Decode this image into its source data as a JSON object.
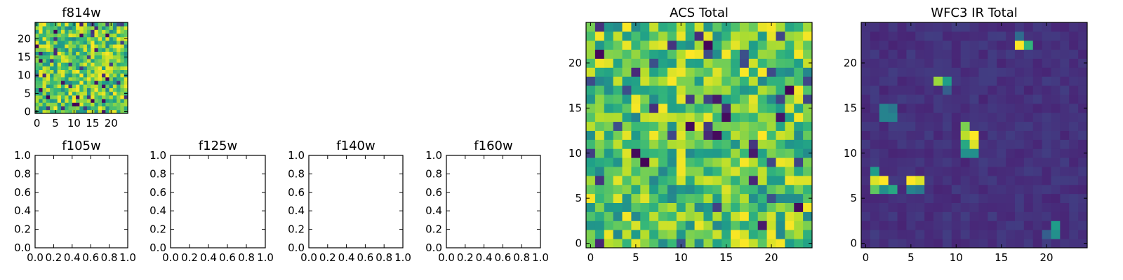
{
  "chart_data": [
    {
      "type": "heatmap",
      "title": "f814w",
      "x_ticks": [
        "0",
        "5",
        "10",
        "15",
        "20"
      ],
      "y_ticks": [
        "0",
        "5",
        "10",
        "15",
        "20"
      ],
      "xlim": [
        -0.5,
        24.5
      ],
      "ylim": [
        -0.5,
        24.5
      ],
      "grid_size": [
        25,
        25
      ],
      "colormap": "viridis",
      "seed": 11
    },
    {
      "type": "heatmap",
      "title": "f105w",
      "x_ticks": [
        "0.0",
        "0.2",
        "0.4",
        "0.6",
        "0.8",
        "1.0"
      ],
      "y_ticks": [
        "0.0",
        "0.2",
        "0.4",
        "0.6",
        "0.8",
        "1.0"
      ],
      "xlim": [
        0,
        1
      ],
      "ylim": [
        0,
        1
      ],
      "empty": true
    },
    {
      "type": "heatmap",
      "title": "f125w",
      "x_ticks": [
        "0.0",
        "0.2",
        "0.4",
        "0.6",
        "0.8",
        "1.0"
      ],
      "y_ticks": [
        "0.0",
        "0.2",
        "0.4",
        "0.6",
        "0.8",
        "1.0"
      ],
      "xlim": [
        0,
        1
      ],
      "ylim": [
        0,
        1
      ],
      "empty": true
    },
    {
      "type": "heatmap",
      "title": "f140w",
      "x_ticks": [
        "0.0",
        "0.2",
        "0.4",
        "0.6",
        "0.8",
        "1.0"
      ],
      "y_ticks": [
        "0.0",
        "0.2",
        "0.4",
        "0.6",
        "0.8",
        "1.0"
      ],
      "xlim": [
        0,
        1
      ],
      "ylim": [
        0,
        1
      ],
      "empty": true
    },
    {
      "type": "heatmap",
      "title": "f160w",
      "x_ticks": [
        "0.0",
        "0.2",
        "0.4",
        "0.6",
        "0.8",
        "1.0"
      ],
      "y_ticks": [
        "0.0",
        "0.2",
        "0.4",
        "0.6",
        "0.8",
        "1.0"
      ],
      "xlim": [
        0,
        1
      ],
      "ylim": [
        0,
        1
      ],
      "empty": true
    },
    {
      "type": "heatmap",
      "title": "ACS Total",
      "x_ticks": [
        "0",
        "5",
        "10",
        "15",
        "20"
      ],
      "y_ticks": [
        "0",
        "5",
        "10",
        "15",
        "20"
      ],
      "xlim": [
        -0.5,
        24.5
      ],
      "ylim": [
        -0.5,
        24.5
      ],
      "grid_size": [
        25,
        25
      ],
      "colormap": "viridis",
      "seed": 47
    },
    {
      "type": "heatmap",
      "title": "WFC3 IR Total",
      "x_ticks": [
        "0",
        "5",
        "10",
        "15",
        "20"
      ],
      "y_ticks": [
        "0",
        "5",
        "10",
        "15",
        "20"
      ],
      "xlim": [
        -0.5,
        24.5
      ],
      "ylim": [
        -0.5,
        24.5
      ],
      "grid_size": [
        25,
        25
      ],
      "colormap": "viridis",
      "background_level": 0.1,
      "hotspots": [
        {
          "x": 1,
          "y": 8,
          "v": 0.55
        },
        {
          "x": 1,
          "y": 7,
          "v": 0.95
        },
        {
          "x": 2,
          "y": 7,
          "v": 1.0
        },
        {
          "x": 1,
          "y": 6,
          "v": 0.75
        },
        {
          "x": 2,
          "y": 6,
          "v": 0.5
        },
        {
          "x": 3,
          "y": 6,
          "v": 0.6
        },
        {
          "x": 5,
          "y": 7,
          "v": 1.0
        },
        {
          "x": 6,
          "y": 7,
          "v": 0.95
        },
        {
          "x": 5,
          "y": 6,
          "v": 0.45
        },
        {
          "x": 6,
          "y": 6,
          "v": 0.4
        },
        {
          "x": 2,
          "y": 14,
          "v": 0.45
        },
        {
          "x": 3,
          "y": 14,
          "v": 0.45
        },
        {
          "x": 2,
          "y": 15,
          "v": 0.45
        },
        {
          "x": 3,
          "y": 15,
          "v": 0.4
        },
        {
          "x": 8,
          "y": 18,
          "v": 0.85
        },
        {
          "x": 9,
          "y": 18,
          "v": 0.55
        },
        {
          "x": 9,
          "y": 17,
          "v": 0.3
        },
        {
          "x": 11,
          "y": 13,
          "v": 0.8
        },
        {
          "x": 11,
          "y": 12,
          "v": 0.9
        },
        {
          "x": 12,
          "y": 12,
          "v": 1.0
        },
        {
          "x": 12,
          "y": 11,
          "v": 0.95
        },
        {
          "x": 11,
          "y": 11,
          "v": 0.6
        },
        {
          "x": 11,
          "y": 10,
          "v": 0.5
        },
        {
          "x": 12,
          "y": 10,
          "v": 0.5
        },
        {
          "x": 17,
          "y": 22,
          "v": 1.0
        },
        {
          "x": 18,
          "y": 22,
          "v": 0.65
        },
        {
          "x": 17,
          "y": 23,
          "v": 0.35
        },
        {
          "x": 21,
          "y": 2,
          "v": 0.55
        },
        {
          "x": 21,
          "y": 1,
          "v": 0.5
        },
        {
          "x": 20,
          "y": 1,
          "v": 0.3
        }
      ],
      "seed": 5
    }
  ]
}
